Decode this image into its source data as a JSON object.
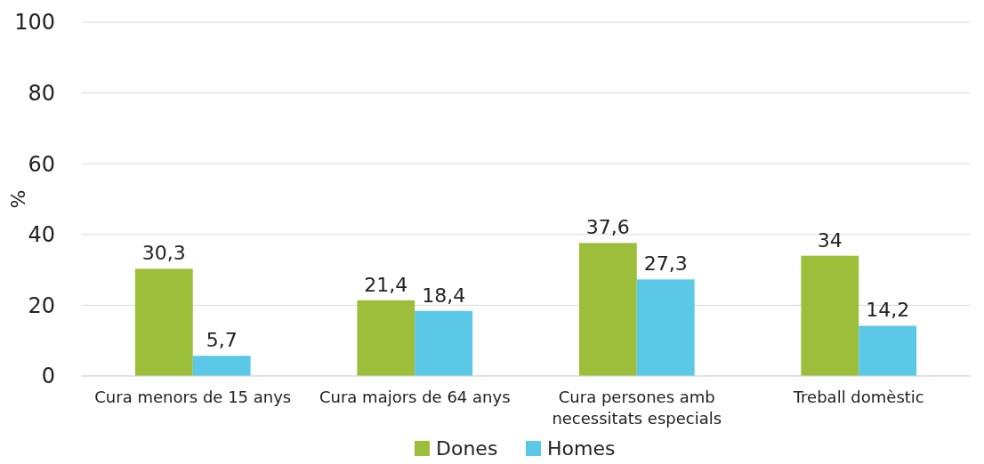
{
  "chart_data": {
    "type": "bar",
    "ylabel": "%",
    "categories": [
      "Cura menors de 15 anys",
      "Cura majors de 64 anys",
      "Cura persones amb necessitats especials",
      "Treball domèstic"
    ],
    "series": [
      {
        "name": "Dones",
        "color": "#9dbe3a",
        "values": [
          30.3,
          21.4,
          37.6,
          34
        ],
        "value_labels": [
          "30,3",
          "21,4",
          "37,6",
          "34"
        ]
      },
      {
        "name": "Homes",
        "color": "#5bc8e8",
        "values": [
          5.7,
          18.4,
          27.3,
          14.2
        ],
        "value_labels": [
          "5,7",
          "18,4",
          "27,3",
          "14,2"
        ]
      }
    ],
    "ylim": [
      0,
      100
    ],
    "yticks": [
      0,
      20,
      40,
      60,
      80,
      100
    ],
    "grid": "y",
    "legend": "bottom"
  }
}
